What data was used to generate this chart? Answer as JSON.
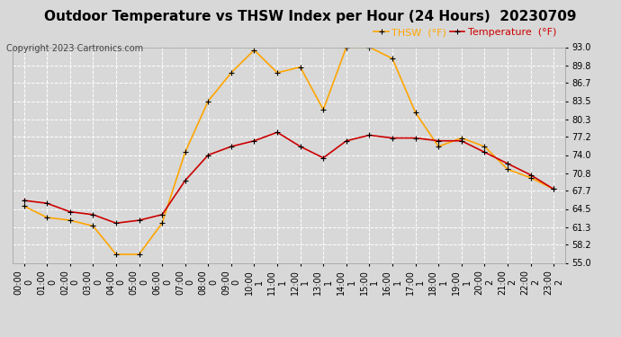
{
  "title": "Outdoor Temperature vs THSW Index per Hour (24 Hours)  20230709",
  "copyright": "Copyright 2023 Cartronics.com",
  "legend_thsw": "THSW  (°F)",
  "legend_temp": "Temperature  (°F)",
  "hour_labels": [
    "00:00",
    "01:00",
    "02:00",
    "03:00",
    "04:00",
    "05:00",
    "06:00",
    "07:00",
    "08:00",
    "09:00",
    "10:00",
    "11:00",
    "12:00",
    "13:00",
    "14:00",
    "15:00",
    "16:00",
    "17:00",
    "18:00",
    "19:00",
    "20:00",
    "21:00",
    "22:00",
    "23:00"
  ],
  "temperature": [
    66.0,
    65.5,
    64.0,
    63.5,
    62.0,
    62.5,
    63.5,
    69.5,
    74.0,
    75.5,
    76.5,
    78.0,
    75.5,
    73.5,
    76.5,
    77.5,
    77.0,
    77.0,
    76.5,
    76.5,
    74.5,
    72.5,
    70.5,
    68.0
  ],
  "thsw": [
    65.0,
    63.0,
    62.5,
    61.5,
    56.5,
    56.5,
    62.0,
    74.5,
    83.5,
    88.5,
    92.5,
    88.5,
    89.5,
    82.0,
    93.0,
    93.0,
    91.0,
    81.5,
    75.5,
    77.0,
    75.5,
    71.5,
    70.0,
    68.0
  ],
  "ylim_min": 55.0,
  "ylim_max": 93.0,
  "yticks": [
    55.0,
    58.2,
    61.3,
    64.5,
    67.7,
    70.8,
    74.0,
    77.2,
    80.3,
    83.5,
    86.7,
    89.8,
    93.0
  ],
  "thsw_color": "#FFA500",
  "temp_color": "#CC0000",
  "marker_color": "#000000",
  "bg_color": "#D8D8D8",
  "grid_color": "#FFFFFF",
  "title_fontsize": 11,
  "copyright_fontsize": 7,
  "legend_fontsize": 8,
  "tick_fontsize": 7
}
